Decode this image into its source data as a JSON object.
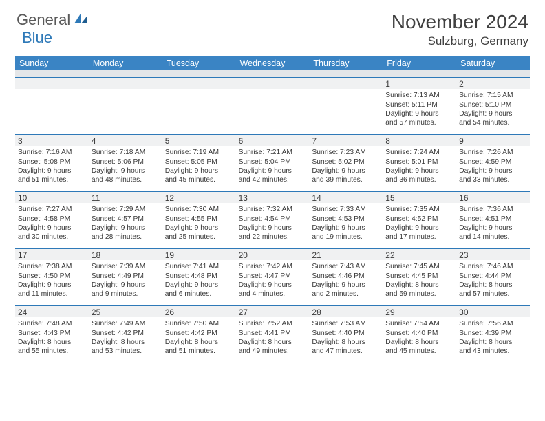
{
  "logo": {
    "general": "General",
    "blue": "Blue"
  },
  "title": "November 2024",
  "location": "Sulzburg, Germany",
  "colors": {
    "header_bg": "#3a84c4",
    "border": "#2e79b8",
    "daystrip": "#f0f1f2"
  },
  "dayNames": [
    "Sunday",
    "Monday",
    "Tuesday",
    "Wednesday",
    "Thursday",
    "Friday",
    "Saturday"
  ],
  "weeks": [
    [
      null,
      null,
      null,
      null,
      null,
      {
        "n": "1",
        "sunrise": "7:13 AM",
        "sunset": "5:11 PM",
        "dl1": "Daylight: 9 hours",
        "dl2": "and 57 minutes."
      },
      {
        "n": "2",
        "sunrise": "7:15 AM",
        "sunset": "5:10 PM",
        "dl1": "Daylight: 9 hours",
        "dl2": "and 54 minutes."
      }
    ],
    [
      {
        "n": "3",
        "sunrise": "7:16 AM",
        "sunset": "5:08 PM",
        "dl1": "Daylight: 9 hours",
        "dl2": "and 51 minutes."
      },
      {
        "n": "4",
        "sunrise": "7:18 AM",
        "sunset": "5:06 PM",
        "dl1": "Daylight: 9 hours",
        "dl2": "and 48 minutes."
      },
      {
        "n": "5",
        "sunrise": "7:19 AM",
        "sunset": "5:05 PM",
        "dl1": "Daylight: 9 hours",
        "dl2": "and 45 minutes."
      },
      {
        "n": "6",
        "sunrise": "7:21 AM",
        "sunset": "5:04 PM",
        "dl1": "Daylight: 9 hours",
        "dl2": "and 42 minutes."
      },
      {
        "n": "7",
        "sunrise": "7:23 AM",
        "sunset": "5:02 PM",
        "dl1": "Daylight: 9 hours",
        "dl2": "and 39 minutes."
      },
      {
        "n": "8",
        "sunrise": "7:24 AM",
        "sunset": "5:01 PM",
        "dl1": "Daylight: 9 hours",
        "dl2": "and 36 minutes."
      },
      {
        "n": "9",
        "sunrise": "7:26 AM",
        "sunset": "4:59 PM",
        "dl1": "Daylight: 9 hours",
        "dl2": "and 33 minutes."
      }
    ],
    [
      {
        "n": "10",
        "sunrise": "7:27 AM",
        "sunset": "4:58 PM",
        "dl1": "Daylight: 9 hours",
        "dl2": "and 30 minutes."
      },
      {
        "n": "11",
        "sunrise": "7:29 AM",
        "sunset": "4:57 PM",
        "dl1": "Daylight: 9 hours",
        "dl2": "and 28 minutes."
      },
      {
        "n": "12",
        "sunrise": "7:30 AM",
        "sunset": "4:55 PM",
        "dl1": "Daylight: 9 hours",
        "dl2": "and 25 minutes."
      },
      {
        "n": "13",
        "sunrise": "7:32 AM",
        "sunset": "4:54 PM",
        "dl1": "Daylight: 9 hours",
        "dl2": "and 22 minutes."
      },
      {
        "n": "14",
        "sunrise": "7:33 AM",
        "sunset": "4:53 PM",
        "dl1": "Daylight: 9 hours",
        "dl2": "and 19 minutes."
      },
      {
        "n": "15",
        "sunrise": "7:35 AM",
        "sunset": "4:52 PM",
        "dl1": "Daylight: 9 hours",
        "dl2": "and 17 minutes."
      },
      {
        "n": "16",
        "sunrise": "7:36 AM",
        "sunset": "4:51 PM",
        "dl1": "Daylight: 9 hours",
        "dl2": "and 14 minutes."
      }
    ],
    [
      {
        "n": "17",
        "sunrise": "7:38 AM",
        "sunset": "4:50 PM",
        "dl1": "Daylight: 9 hours",
        "dl2": "and 11 minutes."
      },
      {
        "n": "18",
        "sunrise": "7:39 AM",
        "sunset": "4:49 PM",
        "dl1": "Daylight: 9 hours",
        "dl2": "and 9 minutes."
      },
      {
        "n": "19",
        "sunrise": "7:41 AM",
        "sunset": "4:48 PM",
        "dl1": "Daylight: 9 hours",
        "dl2": "and 6 minutes."
      },
      {
        "n": "20",
        "sunrise": "7:42 AM",
        "sunset": "4:47 PM",
        "dl1": "Daylight: 9 hours",
        "dl2": "and 4 minutes."
      },
      {
        "n": "21",
        "sunrise": "7:43 AM",
        "sunset": "4:46 PM",
        "dl1": "Daylight: 9 hours",
        "dl2": "and 2 minutes."
      },
      {
        "n": "22",
        "sunrise": "7:45 AM",
        "sunset": "4:45 PM",
        "dl1": "Daylight: 8 hours",
        "dl2": "and 59 minutes."
      },
      {
        "n": "23",
        "sunrise": "7:46 AM",
        "sunset": "4:44 PM",
        "dl1": "Daylight: 8 hours",
        "dl2": "and 57 minutes."
      }
    ],
    [
      {
        "n": "24",
        "sunrise": "7:48 AM",
        "sunset": "4:43 PM",
        "dl1": "Daylight: 8 hours",
        "dl2": "and 55 minutes."
      },
      {
        "n": "25",
        "sunrise": "7:49 AM",
        "sunset": "4:42 PM",
        "dl1": "Daylight: 8 hours",
        "dl2": "and 53 minutes."
      },
      {
        "n": "26",
        "sunrise": "7:50 AM",
        "sunset": "4:42 PM",
        "dl1": "Daylight: 8 hours",
        "dl2": "and 51 minutes."
      },
      {
        "n": "27",
        "sunrise": "7:52 AM",
        "sunset": "4:41 PM",
        "dl1": "Daylight: 8 hours",
        "dl2": "and 49 minutes."
      },
      {
        "n": "28",
        "sunrise": "7:53 AM",
        "sunset": "4:40 PM",
        "dl1": "Daylight: 8 hours",
        "dl2": "and 47 minutes."
      },
      {
        "n": "29",
        "sunrise": "7:54 AM",
        "sunset": "4:40 PM",
        "dl1": "Daylight: 8 hours",
        "dl2": "and 45 minutes."
      },
      {
        "n": "30",
        "sunrise": "7:56 AM",
        "sunset": "4:39 PM",
        "dl1": "Daylight: 8 hours",
        "dl2": "and 43 minutes."
      }
    ]
  ],
  "labels": {
    "sunrise_prefix": "Sunrise: ",
    "sunset_prefix": "Sunset: "
  }
}
